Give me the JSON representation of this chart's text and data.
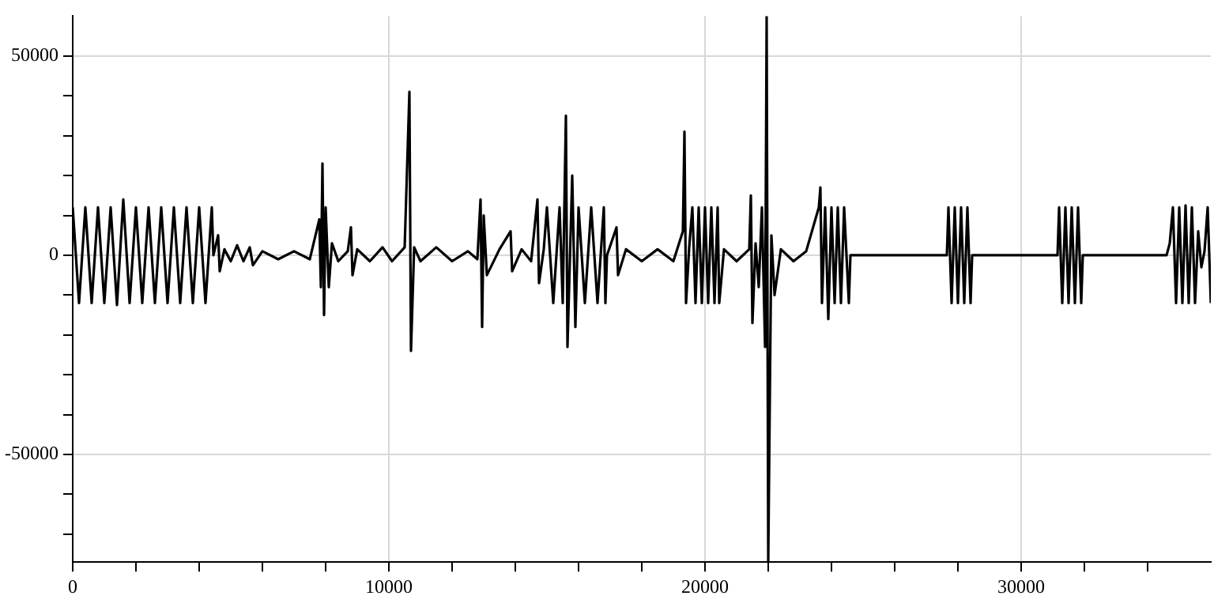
{
  "chart_data": {
    "type": "line",
    "x": [
      0,
      200,
      400,
      600,
      800,
      1000,
      1200,
      1400,
      1600,
      1800,
      2000,
      2200,
      2400,
      2600,
      2800,
      3000,
      3200,
      3400,
      3600,
      3800,
      4000,
      4200,
      4400,
      4450,
      4600,
      4650,
      4800,
      5000,
      5200,
      5400,
      5600,
      5700,
      6000,
      6500,
      7000,
      7500,
      7800,
      7850,
      7900,
      7950,
      8000,
      8100,
      8200,
      8400,
      8700,
      8800,
      8850,
      9000,
      9400,
      9800,
      10100,
      10500,
      10650,
      10700,
      10800,
      11000,
      11500,
      12000,
      12500,
      12800,
      12900,
      12950,
      13000,
      13100,
      13500,
      13850,
      13900,
      14200,
      14500,
      14700,
      14750,
      14900,
      15000,
      15200,
      15400,
      15500,
      15600,
      15650,
      15800,
      15900,
      16000,
      16200,
      16400,
      16600,
      16800,
      16850,
      16900,
      17200,
      17250,
      17500,
      18000,
      18500,
      19000,
      19300,
      19350,
      19400,
      19500,
      19600,
      19700,
      19800,
      19900,
      20000,
      20100,
      20200,
      20300,
      20400,
      20450,
      20600,
      21000,
      21400,
      21450,
      21500,
      21600,
      21700,
      21800,
      21900,
      21950,
      22000,
      22100,
      22200,
      22400,
      22800,
      23200,
      23600,
      23650,
      23700,
      23800,
      23900,
      24000,
      24100,
      24200,
      24300,
      24400,
      24550,
      24600,
      27650,
      27700,
      27800,
      27900,
      28000,
      28100,
      28200,
      28300,
      28400,
      28450,
      31150,
      31200,
      31300,
      31400,
      31500,
      31600,
      31700,
      31800,
      31900,
      31950,
      34600,
      34700,
      34800,
      34900,
      35000,
      35100,
      35200,
      35300,
      35400,
      35500,
      35600,
      35700,
      35800,
      35900,
      36000
    ],
    "values": [
      12000,
      -12000,
      12000,
      -12000,
      12000,
      -12000,
      12000,
      -12500,
      14000,
      -12000,
      12000,
      -12000,
      12000,
      -12000,
      12000,
      -12000,
      12000,
      -12000,
      12000,
      -12000,
      12000,
      -12000,
      12000,
      0,
      5000,
      -4000,
      1500,
      -1500,
      2500,
      -1500,
      2000,
      -2500,
      1000,
      -1000,
      1000,
      -1000,
      9000,
      -8000,
      23000,
      -15000,
      12000,
      -8000,
      3000,
      -1500,
      1000,
      7000,
      -5000,
      1500,
      -1500,
      2000,
      -1500,
      2000,
      41000,
      -24000,
      2000,
      -1500,
      2000,
      -1500,
      1000,
      -1000,
      14000,
      -18000,
      10000,
      -5000,
      1500,
      6000,
      -4000,
      1500,
      -1500,
      14000,
      -7000,
      1500,
      12000,
      -12000,
      12000,
      -12000,
      35000,
      -23000,
      20000,
      -18000,
      12000,
      -12000,
      12000,
      -12000,
      12000,
      -12000,
      0,
      7000,
      -5000,
      1500,
      -1500,
      1500,
      -1500,
      6000,
      31000,
      -12000,
      2000,
      12000,
      -12000,
      12000,
      -12000,
      12000,
      -12000,
      12000,
      -12000,
      12000,
      -12000,
      1500,
      -1500,
      1500,
      15000,
      -17000,
      3000,
      -8000,
      12000,
      -23000,
      60000,
      -77000,
      5000,
      -10000,
      1500,
      -1500,
      1000,
      12000,
      17000,
      -12000,
      12000,
      -16000,
      12000,
      -12000,
      12000,
      -12000,
      12000,
      -12000,
      0,
      0,
      12000,
      -12000,
      12000,
      -12000,
      12000,
      -12000,
      12000,
      -12000,
      0,
      0,
      12000,
      -12000,
      12000,
      -12000,
      12000,
      -12000,
      12000,
      -12000,
      0,
      0,
      3000,
      12000,
      -12000,
      12000,
      -12000,
      12500,
      -12000,
      12000,
      -12000,
      6000,
      -3000,
      1000,
      12000,
      -12000
    ],
    "color": "#000000",
    "xlim": [
      0,
      36000
    ],
    "xticks": [
      0,
      {
        "value": 2000,
        "label": null
      },
      {
        "value": 4000,
        "label": null
      },
      {
        "value": 6000,
        "label": null
      },
      {
        "value": 8000,
        "label": null
      },
      10000,
      {
        "value": 12000,
        "label": null
      },
      {
        "value": 14000,
        "label": null
      },
      {
        "value": 16000,
        "label": null
      },
      {
        "value": 18000,
        "label": null
      },
      20000,
      {
        "value": 22000,
        "label": null
      },
      {
        "value": 24000,
        "label": null
      },
      {
        "value": 26000,
        "label": null
      },
      {
        "value": 28000,
        "label": null
      },
      30000,
      {
        "value": 32000,
        "label": null
      },
      {
        "value": 34000,
        "label": null
      }
    ],
    "ylim": [
      -77000,
      60000
    ],
    "yticks": [
      {
        "value": -70000,
        "label": null
      },
      {
        "value": -60000,
        "label": null
      },
      -50000,
      {
        "value": -40000,
        "label": null
      },
      {
        "value": -30000,
        "label": null
      },
      {
        "value": -20000,
        "label": null
      },
      {
        "value": -10000,
        "label": null
      },
      0,
      {
        "value": 10000,
        "label": null
      },
      {
        "value": 20000,
        "label": null
      },
      {
        "value": 30000,
        "label": null
      },
      {
        "value": 40000,
        "label": null
      },
      50000
    ],
    "grid": true,
    "legend": false,
    "marker": "none",
    "line_style": "solid"
  }
}
